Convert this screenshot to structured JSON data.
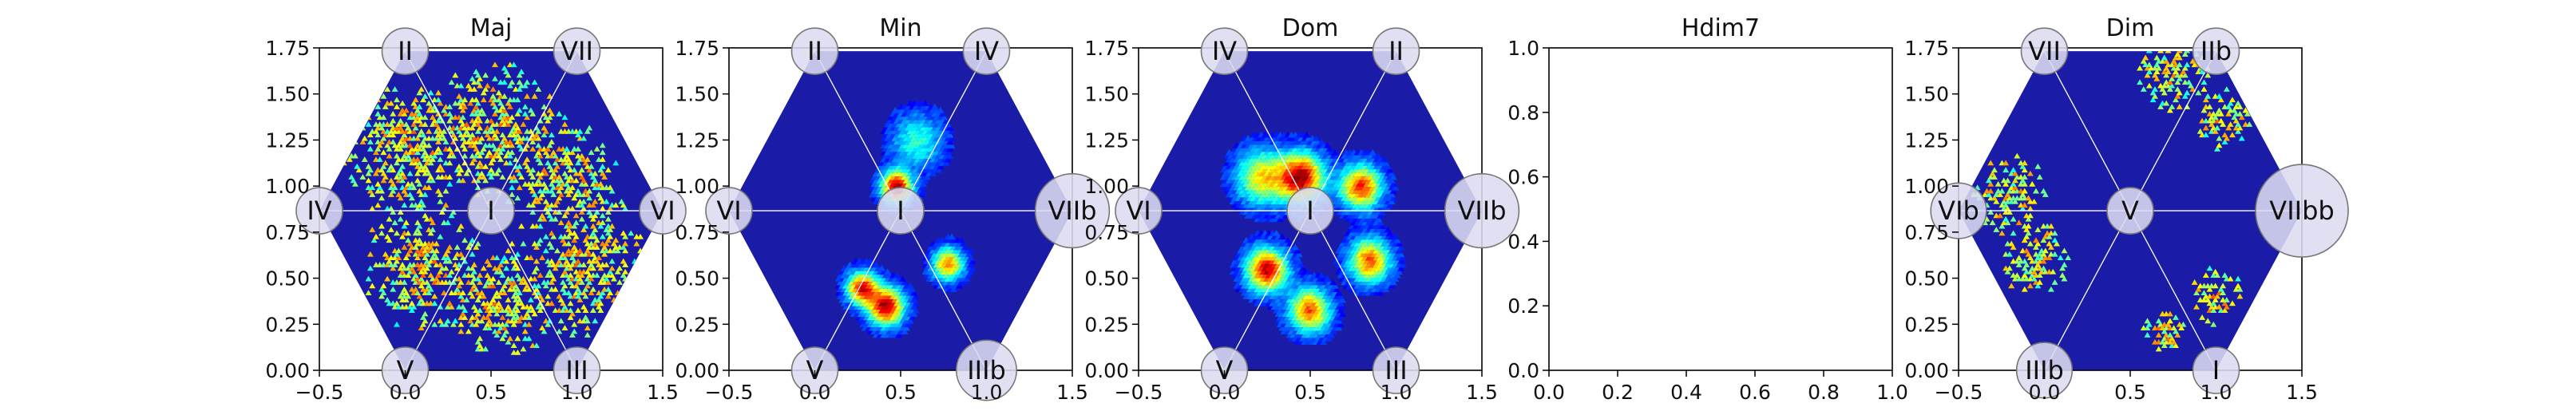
{
  "colors": {
    "hexagon_background": "#1a1ca8",
    "hexagon_cell_outline": "#2a33c0",
    "spoke_lines": "#ffffff",
    "node_fill": "#dcdcf0",
    "node_stroke": "#777777",
    "axes_frame": "#000000",
    "colormap": "jet"
  },
  "chart_data": [
    {
      "type": "heatmap",
      "title": "Maj",
      "xlim": [
        -0.5,
        1.5
      ],
      "ylim": [
        0.0,
        1.75
      ],
      "xticks": [
        "−0.5",
        "0.0",
        "0.5",
        "1.0",
        "1.5"
      ],
      "yticks": [
        "0.00",
        "0.25",
        "0.50",
        "0.75",
        "1.00",
        "1.25",
        "1.50",
        "1.75"
      ],
      "nodes": [
        {
          "label": "I",
          "x": 0.5,
          "y": 0.866,
          "size": 1
        },
        {
          "label": "II",
          "x": 0.0,
          "y": 1.732,
          "size": 1
        },
        {
          "label": "VII",
          "x": 1.0,
          "y": 1.732,
          "size": 1
        },
        {
          "label": "IV",
          "x": -0.5,
          "y": 0.866,
          "size": 1
        },
        {
          "label": "VI",
          "x": 1.5,
          "y": 0.866,
          "size": 1
        },
        {
          "label": "V",
          "x": 0.0,
          "y": 0.0,
          "size": 1
        },
        {
          "label": "III",
          "x": 1.0,
          "y": 0.0,
          "size": 1
        }
      ],
      "clusters": [
        {
          "x": 0.0,
          "y": 1.2,
          "spread": 0.18,
          "peak": 0.5
        },
        {
          "x": 0.5,
          "y": 1.3,
          "spread": 0.18,
          "peak": 0.5
        },
        {
          "x": 0.95,
          "y": 1.05,
          "spread": 0.15,
          "peak": 0.45
        },
        {
          "x": 0.1,
          "y": 0.55,
          "spread": 0.16,
          "peak": 0.5
        },
        {
          "x": 0.55,
          "y": 0.35,
          "spread": 0.15,
          "peak": 0.5
        },
        {
          "x": 1.05,
          "y": 0.55,
          "spread": 0.18,
          "peak": 0.45
        }
      ],
      "density_style": "sparse"
    },
    {
      "type": "heatmap",
      "title": "Min",
      "xlim": [
        -0.5,
        1.5
      ],
      "ylim": [
        0.0,
        1.75
      ],
      "xticks": [
        "−0.5",
        "0.0",
        "0.5",
        "1.0",
        "1.5"
      ],
      "yticks": [
        "0.00",
        "0.25",
        "0.50",
        "0.75",
        "1.00",
        "1.25",
        "1.50",
        "1.75"
      ],
      "nodes": [
        {
          "label": "I",
          "x": 0.5,
          "y": 0.866,
          "size": 1
        },
        {
          "label": "II",
          "x": 0.0,
          "y": 1.732,
          "size": 1
        },
        {
          "label": "IV",
          "x": 1.0,
          "y": 1.732,
          "size": 1
        },
        {
          "label": "VI",
          "x": -0.5,
          "y": 0.866,
          "size": 1
        },
        {
          "label": "VIIb",
          "x": 1.5,
          "y": 0.866,
          "size": 1.6
        },
        {
          "label": "V",
          "x": 0.0,
          "y": 0.0,
          "size": 1
        },
        {
          "label": "IIIb",
          "x": 1.0,
          "y": 0.0,
          "size": 1.3
        }
      ],
      "clusters": [
        {
          "x": 0.48,
          "y": 1.0,
          "spread": 0.06,
          "peak": 1.0
        },
        {
          "x": 0.42,
          "y": 0.35,
          "spread": 0.07,
          "peak": 1.0
        },
        {
          "x": 0.28,
          "y": 0.45,
          "spread": 0.06,
          "peak": 0.9
        },
        {
          "x": 0.78,
          "y": 0.58,
          "spread": 0.06,
          "peak": 0.75
        },
        {
          "x": 0.6,
          "y": 1.25,
          "spread": 0.1,
          "peak": 0.35
        }
      ],
      "density_style": "dense"
    },
    {
      "type": "heatmap",
      "title": "Dom",
      "xlim": [
        -0.5,
        1.5
      ],
      "ylim": [
        0.0,
        1.75
      ],
      "xticks": [
        "−0.5",
        "0.0",
        "0.5",
        "1.0",
        "1.5"
      ],
      "yticks": [
        "0.00",
        "0.25",
        "0.50",
        "0.75",
        "1.00",
        "1.25",
        "1.50",
        "1.75"
      ],
      "nodes": [
        {
          "label": "I",
          "x": 0.5,
          "y": 0.866,
          "size": 1
        },
        {
          "label": "IV",
          "x": 0.0,
          "y": 1.732,
          "size": 1
        },
        {
          "label": "II",
          "x": 1.0,
          "y": 1.732,
          "size": 1
        },
        {
          "label": "VI",
          "x": -0.5,
          "y": 0.866,
          "size": 1
        },
        {
          "label": "VIIb",
          "x": 1.5,
          "y": 0.866,
          "size": 1.6
        },
        {
          "label": "V",
          "x": 0.0,
          "y": 0.0,
          "size": 1
        },
        {
          "label": "III",
          "x": 1.0,
          "y": 0.0,
          "size": 1
        }
      ],
      "clusters": [
        {
          "x": 0.45,
          "y": 1.05,
          "spread": 0.09,
          "peak": 1.0
        },
        {
          "x": 0.22,
          "y": 1.05,
          "spread": 0.1,
          "peak": 0.6
        },
        {
          "x": 0.8,
          "y": 1.0,
          "spread": 0.08,
          "peak": 0.85
        },
        {
          "x": 0.25,
          "y": 0.55,
          "spread": 0.08,
          "peak": 0.95
        },
        {
          "x": 0.5,
          "y": 0.33,
          "spread": 0.08,
          "peak": 0.8
        },
        {
          "x": 0.85,
          "y": 0.6,
          "spread": 0.08,
          "peak": 0.8
        }
      ],
      "density_style": "dense"
    },
    {
      "type": "empty",
      "title": "Hdim7",
      "xlim": [
        0.0,
        1.0
      ],
      "ylim": [
        0.0,
        1.0
      ],
      "xticks": [
        "0.0",
        "0.2",
        "0.4",
        "0.6",
        "0.8",
        "1.0"
      ],
      "yticks": [
        "0.0",
        "0.2",
        "0.4",
        "0.6",
        "0.8",
        "1.0"
      ],
      "nodes": [],
      "clusters": [],
      "density_style": "none"
    },
    {
      "type": "heatmap",
      "title": "Dim",
      "xlim": [
        -0.5,
        1.5
      ],
      "ylim": [
        0.0,
        1.75
      ],
      "xticks": [
        "−0.5",
        "0.0",
        "0.5",
        "1.0",
        "1.5"
      ],
      "yticks": [
        "0.00",
        "0.25",
        "0.50",
        "0.75",
        "1.00",
        "1.25",
        "1.50",
        "1.75"
      ],
      "nodes": [
        {
          "label": "V",
          "x": 0.5,
          "y": 0.866,
          "size": 1
        },
        {
          "label": "VII",
          "x": 0.0,
          "y": 1.732,
          "size": 1
        },
        {
          "label": "IIb",
          "x": 1.0,
          "y": 1.732,
          "size": 1
        },
        {
          "label": "VIb",
          "x": -0.5,
          "y": 0.866,
          "size": 1.2
        },
        {
          "label": "VIIbb",
          "x": 1.5,
          "y": 0.866,
          "size": 2.0
        },
        {
          "label": "IIIb",
          "x": 0.0,
          "y": 0.0,
          "size": 1.2
        },
        {
          "label": "I",
          "x": 1.0,
          "y": 0.0,
          "size": 1
        }
      ],
      "clusters": [
        {
          "x": 0.75,
          "y": 1.6,
          "spread": 0.1,
          "peak": 0.5
        },
        {
          "x": 1.05,
          "y": 1.35,
          "spread": 0.08,
          "peak": 0.55
        },
        {
          "x": -0.2,
          "y": 0.95,
          "spread": 0.12,
          "peak": 0.4
        },
        {
          "x": -0.05,
          "y": 0.6,
          "spread": 0.1,
          "peak": 0.45
        },
        {
          "x": 0.7,
          "y": 0.2,
          "spread": 0.06,
          "peak": 0.6
        },
        {
          "x": 1.0,
          "y": 0.4,
          "spread": 0.08,
          "peak": 0.5
        }
      ],
      "density_style": "sparse"
    }
  ]
}
